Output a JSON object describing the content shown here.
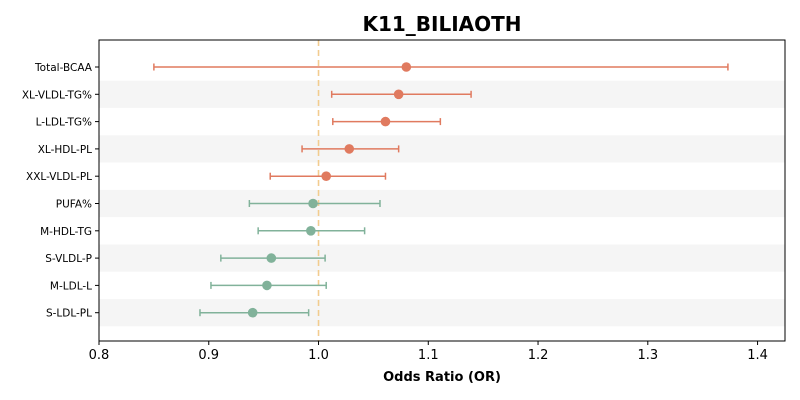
{
  "chart_data": {
    "type": "forest",
    "title": "K11_BILIAOTH",
    "xlabel": "Odds Ratio (OR)",
    "ylabel": "",
    "xlim": [
      0.8,
      1.425
    ],
    "xticks": [
      "0.8",
      "0.9",
      "1.0",
      "1.1",
      "1.2",
      "1.3",
      "1.4"
    ],
    "reference_line": 1.0,
    "colors": {
      "increase": "#e07a5f",
      "decrease": "#81b29a",
      "refline": "#f2cc8f",
      "band": "#f5f5f5"
    },
    "rows": [
      {
        "label": "Total-BCAA",
        "or": 1.08,
        "lo": 0.85,
        "hi": 1.373
      },
      {
        "label": "XL-VLDL-TG%",
        "or": 1.073,
        "lo": 1.012,
        "hi": 1.139
      },
      {
        "label": "L-LDL-TG%",
        "or": 1.061,
        "lo": 1.013,
        "hi": 1.111
      },
      {
        "label": "XL-HDL-PL",
        "or": 1.028,
        "lo": 0.985,
        "hi": 1.073
      },
      {
        "label": "XXL-VLDL-PL",
        "or": 1.007,
        "lo": 0.956,
        "hi": 1.061
      },
      {
        "label": "PUFA%",
        "or": 0.995,
        "lo": 0.937,
        "hi": 1.056
      },
      {
        "label": "M-HDL-TG",
        "or": 0.993,
        "lo": 0.945,
        "hi": 1.042
      },
      {
        "label": "S-VLDL-P",
        "or": 0.957,
        "lo": 0.911,
        "hi": 1.006
      },
      {
        "label": "M-LDL-L",
        "or": 0.953,
        "lo": 0.902,
        "hi": 1.007
      },
      {
        "label": "S-LDL-PL",
        "or": 0.94,
        "lo": 0.892,
        "hi": 0.991
      }
    ]
  }
}
